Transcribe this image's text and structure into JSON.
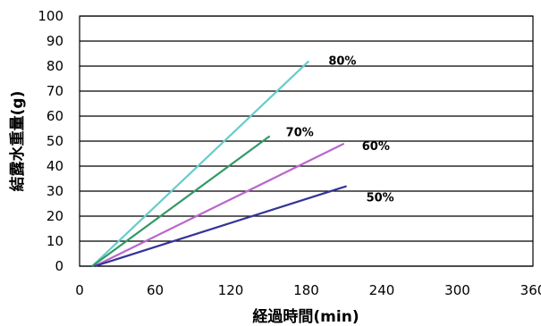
{
  "chart_data": {
    "type": "line",
    "xlabel": "経過時間(min)",
    "ylabel": "結露水重量(g)",
    "xlim": [
      0,
      360
    ],
    "ylim": [
      0,
      100
    ],
    "x_ticks": [
      0,
      60,
      120,
      180,
      240,
      300,
      360
    ],
    "y_ticks": [
      0,
      10,
      20,
      30,
      40,
      50,
      60,
      70,
      80,
      90,
      100
    ],
    "grid": "horizontal",
    "series": [
      {
        "name": "80%",
        "color": "#66cccc",
        "x": [
          10,
          182
        ],
        "y": [
          0,
          82
        ]
      },
      {
        "name": "70%",
        "color": "#339966",
        "x": [
          10,
          151
        ],
        "y": [
          0,
          52
        ]
      },
      {
        "name": "60%",
        "color": "#bb66cc",
        "x": [
          12,
          210
        ],
        "y": [
          0,
          49
        ]
      },
      {
        "name": "50%",
        "color": "#333399",
        "x": [
          12,
          212
        ],
        "y": [
          0,
          32
        ]
      }
    ]
  }
}
